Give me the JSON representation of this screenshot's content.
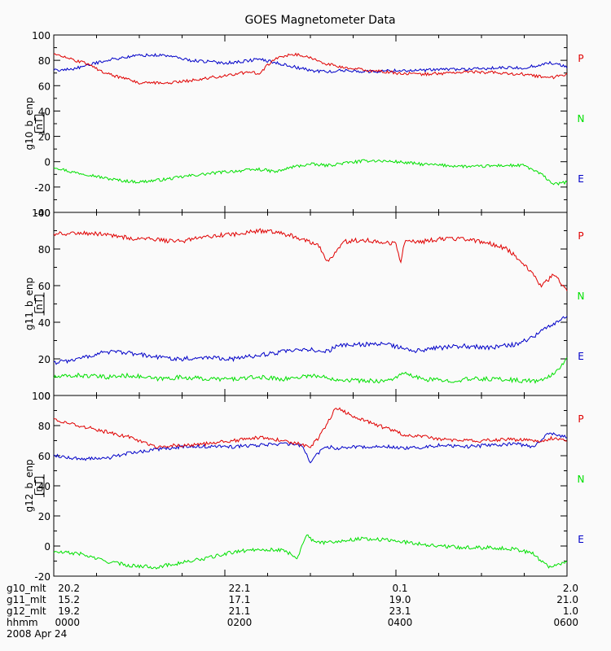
{
  "chart_data": [
    {
      "type": "line",
      "title": "GOES Magnetometer Data",
      "ylabel": "g10_b_enp",
      "yunit": "[nT]",
      "ylim": [
        -40,
        100
      ],
      "yticks": [
        -40,
        -20,
        0,
        20,
        40,
        60,
        80,
        100
      ],
      "x_hhmm_range": [
        "0000",
        "0600"
      ],
      "legend": [
        {
          "letter": "P",
          "color": "#e00000"
        },
        {
          "letter": "N",
          "color": "#00e000"
        },
        {
          "letter": "E",
          "color": "#0000c8"
        }
      ],
      "series": [
        {
          "name": "P",
          "color": "#e00000",
          "x": [
            0,
            0.2,
            0.4,
            0.6,
            0.8,
            1.0,
            1.3,
            1.6,
            2.0,
            2.2,
            2.4,
            2.6,
            2.8,
            3.0,
            3.2,
            3.4,
            3.7,
            4.0,
            4.3,
            4.6,
            4.9,
            5.2,
            5.5,
            5.8,
            6.0
          ],
          "values": [
            85,
            81,
            77,
            70,
            66,
            62,
            62,
            64,
            68,
            70,
            70,
            82,
            85,
            82,
            77,
            74,
            72,
            70,
            69,
            70,
            71,
            70,
            69,
            66,
            69
          ]
        },
        {
          "name": "N",
          "color": "#00e000",
          "x": [
            0,
            0.2,
            0.4,
            0.6,
            0.8,
            1.0,
            1.3,
            1.6,
            2.0,
            2.2,
            2.4,
            2.6,
            2.8,
            3.0,
            3.2,
            3.4,
            3.7,
            4.0,
            4.3,
            4.6,
            4.9,
            5.2,
            5.5,
            5.7,
            5.85,
            6.0
          ],
          "values": [
            -4,
            -8,
            -10,
            -13,
            -15,
            -16,
            -14,
            -11,
            -8,
            -7,
            -6,
            -8,
            -4,
            -2,
            -3,
            -1,
            1,
            0,
            -2,
            -3,
            -4,
            -3,
            -3,
            -10,
            -18,
            -16
          ]
        },
        {
          "name": "E",
          "color": "#0000c8",
          "x": [
            0,
            0.2,
            0.4,
            0.6,
            0.8,
            1.0,
            1.3,
            1.6,
            2.0,
            2.2,
            2.4,
            2.6,
            2.8,
            3.0,
            3.2,
            3.4,
            3.7,
            4.0,
            4.3,
            4.6,
            4.9,
            5.2,
            5.5,
            5.8,
            6.0
          ],
          "values": [
            72,
            73,
            76,
            80,
            82,
            84,
            84,
            80,
            78,
            79,
            81,
            78,
            75,
            72,
            71,
            72,
            71,
            72,
            72,
            73,
            73,
            74,
            74,
            78,
            75
          ]
        }
      ]
    },
    {
      "type": "line",
      "ylabel": "g11_b_enp",
      "yunit": "[nT]",
      "ylim": [
        0,
        100
      ],
      "yticks": [
        0,
        20,
        40,
        60,
        80,
        100
      ],
      "legend": [
        {
          "letter": "P",
          "color": "#e00000"
        },
        {
          "letter": "N",
          "color": "#00e000"
        },
        {
          "letter": "E",
          "color": "#0000c8"
        }
      ],
      "series": [
        {
          "name": "P",
          "color": "#e00000",
          "x": [
            0,
            0.3,
            0.6,
            0.9,
            1.2,
            1.5,
            1.8,
            2.1,
            2.4,
            2.6,
            2.8,
            3.0,
            3.1,
            3.2,
            3.4,
            3.6,
            3.8,
            4.0,
            4.05,
            4.1,
            4.3,
            4.6,
            4.9,
            5.1,
            5.3,
            5.5,
            5.7,
            5.85,
            6.0
          ],
          "values": [
            88,
            89,
            88,
            86,
            85,
            84,
            87,
            88,
            90,
            89,
            87,
            84,
            82,
            73,
            84,
            85,
            84,
            83,
            72,
            84,
            84,
            86,
            85,
            83,
            80,
            72,
            60,
            66,
            58
          ]
        },
        {
          "name": "N",
          "color": "#00e000",
          "x": [
            0,
            0.3,
            0.6,
            0.9,
            1.2,
            1.5,
            1.8,
            2.1,
            2.4,
            2.7,
            3.0,
            3.3,
            3.6,
            3.9,
            4.1,
            4.3,
            4.6,
            4.9,
            5.2,
            5.5,
            5.7,
            5.85,
            6.0
          ],
          "values": [
            10,
            11,
            10,
            11,
            9,
            10,
            9,
            9,
            10,
            9,
            11,
            9,
            8,
            8,
            12,
            9,
            8,
            9,
            9,
            8,
            8,
            12,
            20
          ]
        },
        {
          "name": "E",
          "color": "#0000c8",
          "x": [
            0,
            0.3,
            0.6,
            0.9,
            1.2,
            1.5,
            1.8,
            2.1,
            2.4,
            2.7,
            3.0,
            3.2,
            3.3,
            3.6,
            3.9,
            4.2,
            4.5,
            4.8,
            5.1,
            5.4,
            5.6,
            5.8,
            6.0
          ],
          "values": [
            18,
            20,
            24,
            23,
            21,
            20,
            21,
            20,
            22,
            24,
            25,
            24,
            27,
            28,
            28,
            24,
            26,
            27,
            26,
            28,
            32,
            38,
            44
          ]
        }
      ]
    },
    {
      "type": "line",
      "ylabel": "g12_b_enp",
      "yunit": "[nT]",
      "ylim": [
        -20,
        100
      ],
      "yticks": [
        -20,
        0,
        20,
        40,
        60,
        80,
        100
      ],
      "legend": [
        {
          "letter": "P",
          "color": "#e00000"
        },
        {
          "letter": "N",
          "color": "#00e000"
        },
        {
          "letter": "E",
          "color": "#0000c8"
        }
      ],
      "series": [
        {
          "name": "P",
          "color": "#e00000",
          "x": [
            0,
            0.3,
            0.6,
            0.9,
            1.2,
            1.5,
            1.8,
            2.1,
            2.4,
            2.7,
            3.0,
            3.1,
            3.2,
            3.3,
            3.5,
            3.8,
            4.1,
            4.4,
            4.7,
            5.0,
            5.3,
            5.55,
            5.7,
            5.85,
            6.0
          ],
          "values": [
            84,
            80,
            76,
            72,
            66,
            67,
            68,
            70,
            72,
            70,
            66,
            72,
            82,
            92,
            86,
            80,
            74,
            72,
            70,
            70,
            71,
            70,
            70,
            72,
            70
          ]
        },
        {
          "name": "N",
          "color": "#00e000",
          "x": [
            0,
            0.3,
            0.6,
            0.9,
            1.2,
            1.5,
            1.8,
            2.1,
            2.4,
            2.7,
            2.85,
            2.95,
            3.05,
            3.3,
            3.6,
            3.9,
            4.2,
            4.5,
            4.8,
            5.1,
            5.4,
            5.6,
            5.7,
            5.8,
            6.0
          ],
          "values": [
            -4,
            -5,
            -10,
            -13,
            -14,
            -11,
            -8,
            -4,
            -2,
            -3,
            -8,
            8,
            2,
            3,
            5,
            4,
            2,
            0,
            -1,
            -1,
            -2,
            -5,
            -10,
            -14,
            -10
          ]
        },
        {
          "name": "E",
          "color": "#0000c8",
          "x": [
            0,
            0.3,
            0.6,
            0.9,
            1.2,
            1.5,
            1.8,
            2.1,
            2.4,
            2.7,
            2.9,
            3.0,
            3.1,
            3.2,
            3.3,
            3.6,
            3.9,
            4.2,
            4.5,
            4.8,
            5.1,
            5.4,
            5.6,
            5.8,
            6.0
          ],
          "values": [
            60,
            58,
            58,
            62,
            64,
            66,
            66,
            66,
            67,
            68,
            67,
            56,
            62,
            66,
            65,
            66,
            66,
            65,
            67,
            66,
            67,
            68,
            66,
            75,
            72
          ]
        }
      ]
    }
  ],
  "footer": {
    "labels": [
      "g10_mlt",
      "g11_mlt",
      "g12_mlt",
      "hhmm"
    ],
    "columns": [
      {
        "g10_mlt": "20.2",
        "g11_mlt": "15.2",
        "g12_mlt": "19.2",
        "hhmm": "0000"
      },
      {
        "g10_mlt": "22.1",
        "g11_mlt": "17.1",
        "g12_mlt": "21.1",
        "hhmm": "0200"
      },
      {
        "g10_mlt": "0.1",
        "g11_mlt": "19.0",
        "g12_mlt": "23.1",
        "hhmm": "0400"
      },
      {
        "g10_mlt": "2.0",
        "g11_mlt": "21.0",
        "g12_mlt": "1.0",
        "hhmm": "0600"
      }
    ],
    "date": "2008 Apr 24"
  }
}
